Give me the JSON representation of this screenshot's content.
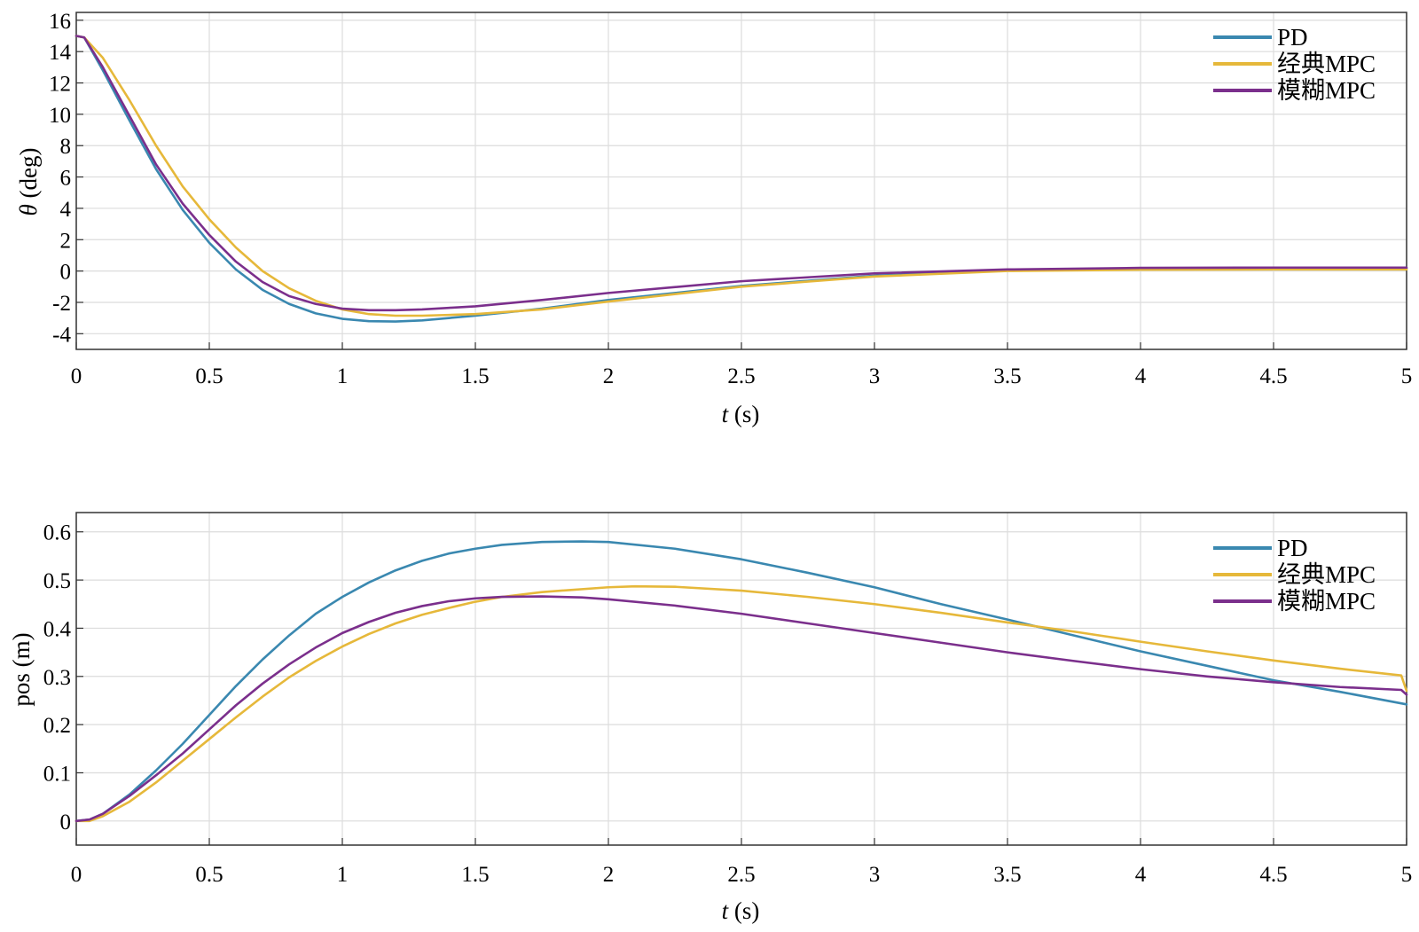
{
  "figure": {
    "colors": {
      "PD": "#3a88b0",
      "classic_mpc": "#e6b83a",
      "fuzzy_mpc": "#7b2f8c",
      "grid": "#dcdcdc",
      "axes": "#333333"
    }
  },
  "chart_data": [
    {
      "type": "line",
      "title": "",
      "xlabel_var": "t",
      "xlabel_unit": "(s)",
      "ylabel_var": "θ",
      "ylabel_unit": "(deg)",
      "xlim": [
        0,
        5
      ],
      "ylim": [
        -5,
        16.5
      ],
      "grid": true,
      "legend_position": "top-right",
      "xticks": [
        0,
        0.5,
        1,
        1.5,
        2,
        2.5,
        3,
        3.5,
        4,
        4.5,
        5
      ],
      "xtick_labels": [
        "0",
        "0.5",
        "1",
        "1.5",
        "2",
        "2.5",
        "3",
        "3.5",
        "4",
        "4.5",
        "5"
      ],
      "yticks": [
        16,
        14,
        12,
        10,
        8,
        6,
        4,
        2,
        0,
        -2,
        -4
      ],
      "ytick_labels": [
        "16",
        "14",
        "12",
        "10",
        "8",
        "6",
        "4",
        "2",
        "0",
        "-2",
        "-4"
      ],
      "series": [
        {
          "name": "PD",
          "color": "#3a88b0",
          "x": [
            0,
            0.03,
            0.1,
            0.2,
            0.3,
            0.4,
            0.5,
            0.6,
            0.7,
            0.8,
            0.9,
            1.0,
            1.1,
            1.2,
            1.3,
            1.4,
            1.5,
            1.75,
            2.0,
            2.5,
            3.0,
            3.5,
            4.0,
            4.5,
            5.0
          ],
          "y": [
            15.0,
            14.9,
            12.8,
            9.6,
            6.5,
            3.9,
            1.8,
            0.1,
            -1.2,
            -2.1,
            -2.7,
            -3.05,
            -3.2,
            -3.22,
            -3.15,
            -3.0,
            -2.85,
            -2.4,
            -1.85,
            -0.95,
            -0.3,
            0.05,
            0.12,
            0.15,
            0.15
          ]
        },
        {
          "name": "经典MPC",
          "color": "#e6b83a",
          "x": [
            0,
            0.03,
            0.1,
            0.2,
            0.3,
            0.4,
            0.5,
            0.6,
            0.7,
            0.8,
            0.9,
            1.0,
            1.1,
            1.2,
            1.3,
            1.4,
            1.5,
            1.75,
            2.0,
            2.5,
            3.0,
            3.5,
            4.0,
            4.5,
            5.0
          ],
          "y": [
            15.0,
            14.9,
            13.6,
            10.9,
            8.0,
            5.4,
            3.3,
            1.5,
            0.0,
            -1.1,
            -1.9,
            -2.45,
            -2.75,
            -2.85,
            -2.85,
            -2.8,
            -2.75,
            -2.45,
            -1.95,
            -1.0,
            -0.35,
            0.0,
            0.08,
            0.1,
            0.1
          ]
        },
        {
          "name": "模糊MPC",
          "color": "#7b2f8c",
          "x": [
            0,
            0.03,
            0.1,
            0.2,
            0.3,
            0.4,
            0.5,
            0.6,
            0.7,
            0.8,
            0.9,
            1.0,
            1.1,
            1.2,
            1.3,
            1.4,
            1.5,
            1.75,
            2.0,
            2.5,
            3.0,
            3.5,
            4.0,
            4.5,
            5.0
          ],
          "y": [
            15.0,
            14.9,
            13.0,
            9.9,
            6.8,
            4.3,
            2.3,
            0.6,
            -0.7,
            -1.6,
            -2.1,
            -2.4,
            -2.5,
            -2.5,
            -2.45,
            -2.35,
            -2.25,
            -1.85,
            -1.4,
            -0.65,
            -0.15,
            0.1,
            0.2,
            0.22,
            0.22
          ]
        }
      ]
    },
    {
      "type": "line",
      "title": "",
      "xlabel_var": "t",
      "xlabel_unit": "(s)",
      "ylabel": "pos (m)",
      "xlim": [
        0,
        5
      ],
      "ylim": [
        -0.05,
        0.64
      ],
      "grid": true,
      "legend_position": "top-right",
      "xticks": [
        0,
        0.5,
        1,
        1.5,
        2,
        2.5,
        3,
        3.5,
        4,
        4.5,
        5
      ],
      "xtick_labels": [
        "0",
        "0.5",
        "1",
        "1.5",
        "2",
        "2.5",
        "3",
        "3.5",
        "4",
        "4.5",
        "5"
      ],
      "yticks": [
        0.6,
        0.5,
        0.4,
        0.3,
        0.2,
        0.1,
        0
      ],
      "ytick_labels": [
        "0.6",
        "0.5",
        "0.4",
        "0.3",
        "0.2",
        "0.1",
        "0"
      ],
      "series": [
        {
          "name": "PD",
          "color": "#3a88b0",
          "x": [
            0,
            0.05,
            0.1,
            0.2,
            0.3,
            0.4,
            0.5,
            0.6,
            0.7,
            0.8,
            0.9,
            1.0,
            1.1,
            1.2,
            1.3,
            1.4,
            1.5,
            1.6,
            1.75,
            1.9,
            2.0,
            2.25,
            2.5,
            2.75,
            3.0,
            3.25,
            3.5,
            3.75,
            4.0,
            4.25,
            4.5,
            4.75,
            5.0
          ],
          "y": [
            0,
            0.003,
            0.015,
            0.055,
            0.105,
            0.16,
            0.22,
            0.28,
            0.335,
            0.385,
            0.43,
            0.465,
            0.495,
            0.52,
            0.54,
            0.555,
            0.565,
            0.573,
            0.579,
            0.58,
            0.579,
            0.565,
            0.543,
            0.515,
            0.485,
            0.45,
            0.418,
            0.385,
            0.352,
            0.322,
            0.292,
            0.268,
            0.242
          ]
        },
        {
          "name": "经典MPC",
          "color": "#e6b83a",
          "x": [
            0,
            0.05,
            0.1,
            0.2,
            0.3,
            0.4,
            0.5,
            0.6,
            0.7,
            0.8,
            0.9,
            1.0,
            1.1,
            1.2,
            1.3,
            1.4,
            1.5,
            1.6,
            1.75,
            2.0,
            2.1,
            2.25,
            2.5,
            2.75,
            3.0,
            3.25,
            3.5,
            3.75,
            4.0,
            4.25,
            4.5,
            4.75,
            4.98,
            5.0
          ],
          "y": [
            0,
            0.0,
            0.01,
            0.04,
            0.08,
            0.125,
            0.17,
            0.215,
            0.258,
            0.298,
            0.332,
            0.362,
            0.388,
            0.41,
            0.428,
            0.442,
            0.455,
            0.465,
            0.475,
            0.485,
            0.487,
            0.486,
            0.478,
            0.465,
            0.45,
            0.432,
            0.412,
            0.393,
            0.372,
            0.352,
            0.333,
            0.316,
            0.302,
            0.27
          ]
        },
        {
          "name": "模糊MPC",
          "color": "#7b2f8c",
          "x": [
            0,
            0.05,
            0.1,
            0.2,
            0.3,
            0.4,
            0.5,
            0.6,
            0.7,
            0.8,
            0.9,
            1.0,
            1.1,
            1.2,
            1.3,
            1.4,
            1.5,
            1.6,
            1.75,
            1.9,
            2.0,
            2.25,
            2.5,
            2.75,
            3.0,
            3.25,
            3.5,
            3.75,
            4.0,
            4.25,
            4.5,
            4.75,
            4.98,
            5.0
          ],
          "y": [
            0,
            0.003,
            0.015,
            0.052,
            0.095,
            0.14,
            0.19,
            0.24,
            0.285,
            0.325,
            0.36,
            0.39,
            0.413,
            0.432,
            0.446,
            0.456,
            0.462,
            0.465,
            0.466,
            0.464,
            0.46,
            0.447,
            0.43,
            0.41,
            0.39,
            0.37,
            0.35,
            0.332,
            0.315,
            0.3,
            0.288,
            0.278,
            0.272,
            0.262
          ]
        }
      ]
    }
  ]
}
